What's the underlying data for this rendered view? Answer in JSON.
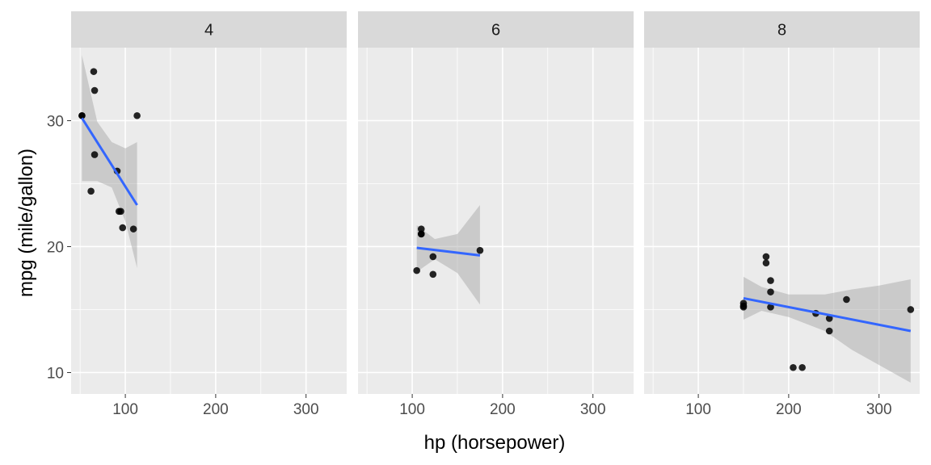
{
  "chart_data": {
    "type": "scatter",
    "xlabel": "hp (horsepower)",
    "ylabel": "mpg (mile/gallon)",
    "xlim": [
      40,
      345
    ],
    "ylim": [
      8.3,
      35.8
    ],
    "x_ticks": [
      100,
      200,
      300
    ],
    "y_ticks": [
      10,
      20,
      30
    ],
    "grid": true,
    "smooth": "linear fit with confidence band",
    "colors": {
      "points": "#000000",
      "fit_line": "#3366ff",
      "band": "#999999",
      "panel_bg": "#ebebeb",
      "strip_bg": "#d9d9d9"
    },
    "panels": [
      {
        "strip": "4",
        "points": [
          [
            52,
            30.4
          ],
          [
            52,
            30.4
          ],
          [
            62,
            24.4
          ],
          [
            65,
            33.9
          ],
          [
            66,
            32.4
          ],
          [
            66,
            27.3
          ],
          [
            91,
            26.0
          ],
          [
            93,
            22.8
          ],
          [
            95,
            22.8
          ],
          [
            97,
            21.5
          ],
          [
            109,
            21.4
          ],
          [
            113,
            30.4
          ]
        ],
        "fit": {
          "x": [
            52,
            113
          ],
          "y": [
            30.2,
            23.3
          ]
        },
        "band": {
          "x": [
            52,
            69,
            85,
            100,
            113
          ],
          "upper": [
            35.2,
            29.9,
            28.3,
            27.8,
            28.3
          ],
          "lower": [
            25.2,
            25.2,
            24.7,
            22.0,
            18.3
          ]
        }
      },
      {
        "strip": "6",
        "points": [
          [
            105,
            18.1
          ],
          [
            110,
            21.0
          ],
          [
            110,
            21.4
          ],
          [
            110,
            21.0
          ],
          [
            123,
            17.8
          ],
          [
            123,
            19.2
          ],
          [
            175,
            19.7
          ]
        ],
        "fit": {
          "x": [
            105,
            175
          ],
          "y": [
            19.9,
            19.3
          ]
        },
        "band": {
          "x": [
            105,
            125,
            150,
            175
          ],
          "upper": [
            21.7,
            20.6,
            21.0,
            23.3
          ],
          "lower": [
            18.0,
            19.0,
            17.9,
            15.4
          ]
        }
      },
      {
        "strip": "8",
        "points": [
          [
            150,
            15.5
          ],
          [
            150,
            15.2
          ],
          [
            150,
            15.3
          ],
          [
            175,
            19.2
          ],
          [
            175,
            18.7
          ],
          [
            180,
            16.4
          ],
          [
            180,
            17.3
          ],
          [
            180,
            15.2
          ],
          [
            205,
            10.4
          ],
          [
            215,
            10.4
          ],
          [
            230,
            14.7
          ],
          [
            245,
            14.3
          ],
          [
            245,
            13.3
          ],
          [
            264,
            15.8
          ],
          [
            335,
            15.0
          ]
        ],
        "fit": {
          "x": [
            150,
            335
          ],
          "y": [
            15.9,
            13.3
          ]
        },
        "band": {
          "x": [
            150,
            170,
            200,
            240,
            270,
            300,
            335
          ],
          "upper": [
            17.6,
            16.8,
            16.2,
            16.2,
            16.6,
            16.9,
            17.4
          ],
          "lower": [
            14.2,
            14.9,
            14.4,
            13.3,
            11.8,
            10.6,
            9.2
          ]
        }
      }
    ]
  }
}
